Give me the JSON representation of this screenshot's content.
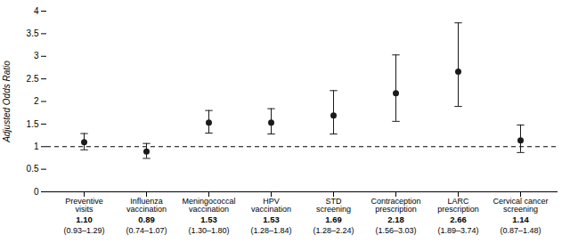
{
  "chart_data": {
    "type": "errorbar",
    "categories": [
      "Preventive\nvisits",
      "Influenza\nvaccination",
      "Meningococcal\nvaccination",
      "HPV\nvaccination",
      "STD\nscreening",
      "Contraception\nprescription",
      "LARC\nprescription",
      "Cervical cancer\nscreening"
    ],
    "values": [
      1.1,
      0.89,
      1.53,
      1.53,
      1.69,
      2.18,
      2.66,
      1.14
    ],
    "value_labels": [
      "1.10",
      "0.89",
      "1.53",
      "1.53",
      "1.69",
      "2.18",
      "2.66",
      "1.14"
    ],
    "ci_lower": [
      0.93,
      0.74,
      1.3,
      1.28,
      1.28,
      1.56,
      1.89,
      0.87
    ],
    "ci_upper": [
      1.29,
      1.07,
      1.8,
      1.84,
      2.24,
      3.03,
      3.74,
      1.48
    ],
    "ci_labels": [
      "(0.93–1.29)",
      "(0.74–1.07)",
      "(1.30–1.80)",
      "(1.28–1.84)",
      "(1.28–2.24)",
      "(1.56–3.03)",
      "(1.89–3.74)",
      "(0.87–1.48)"
    ],
    "ylabel": "Adjusted Odds Ratio",
    "ylim": [
      0,
      4.0
    ],
    "yticks": [
      0,
      0.5,
      1.0,
      1.5,
      2.0,
      2.5,
      3.0,
      3.5,
      4.0
    ],
    "reference_line": 1.0,
    "color": "#1a1a1a",
    "grid": false
  }
}
